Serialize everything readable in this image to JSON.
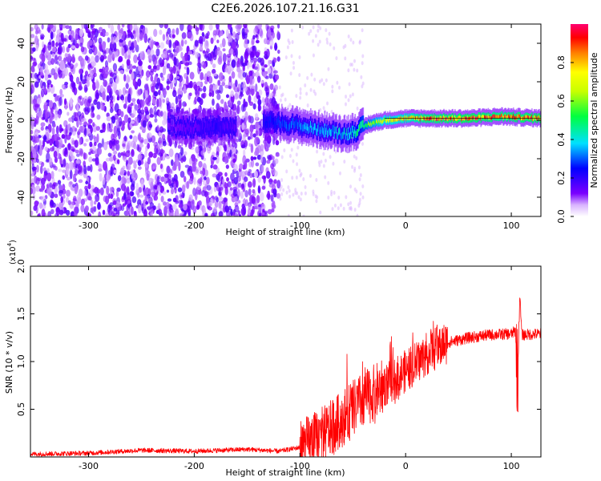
{
  "title": "C2E6.2026.107.21.16.G31",
  "chart_data": [
    {
      "type": "heatmap",
      "title": "C2E6.2026.107.21.16.G31",
      "xlabel": "Height of straight line (km)",
      "ylabel": "Frequency (Hz)",
      "xlim": [
        -355,
        128
      ],
      "ylim": [
        -50,
        50
      ],
      "xticks": [
        -300,
        -200,
        -100,
        0,
        100
      ],
      "xtick_labels": [
        "-300",
        "-200",
        "-100",
        "0",
        "100"
      ],
      "yticks": [
        -40,
        -20,
        0,
        20,
        40
      ],
      "ytick_labels": [
        "-40",
        "-20",
        "0",
        "20",
        "40"
      ],
      "colorbar": {
        "label": "Normalized spectral amplitude",
        "range": [
          0,
          1
        ],
        "ticks": [
          0.0,
          0.2,
          0.4,
          0.6,
          0.8
        ],
        "tick_labels": [
          "0.0",
          "0.2",
          "0.4",
          "0.6",
          "0.8"
        ],
        "colors": [
          "#ffffff",
          "#7a00ff",
          "#0000ff",
          "#00e0ff",
          "#00ff00",
          "#ffff00",
          "#ff8000",
          "#ff0000",
          "#ff00a0"
        ]
      },
      "ridge": {
        "description_points": [
          {
            "x": -225,
            "y": -3,
            "amp": 0.12
          },
          {
            "x": -200,
            "y": -4,
            "amp": 0.15
          },
          {
            "x": -180,
            "y": -3,
            "amp": 0.2
          },
          {
            "x": -160,
            "y": -4,
            "amp": 0.15
          },
          {
            "x": -130,
            "y": -1,
            "amp": 0.25
          },
          {
            "x": -110,
            "y": -2,
            "amp": 0.3
          },
          {
            "x": -90,
            "y": -4,
            "amp": 0.35
          },
          {
            "x": -70,
            "y": -6,
            "amp": 0.35
          },
          {
            "x": -55,
            "y": -7,
            "amp": 0.4
          },
          {
            "x": -45,
            "y": -5,
            "amp": 0.45
          },
          {
            "x": -35,
            "y": -2,
            "amp": 0.6
          },
          {
            "x": -20,
            "y": 0,
            "amp": 0.7
          },
          {
            "x": 0,
            "y": 1,
            "amp": 0.75
          },
          {
            "x": 20,
            "y": 1,
            "amp": 0.85
          },
          {
            "x": 60,
            "y": 1,
            "amp": 0.9
          },
          {
            "x": 90,
            "y": 2,
            "amp": 0.85
          },
          {
            "x": 128,
            "y": 1,
            "amp": 0.9
          }
        ]
      }
    },
    {
      "type": "line",
      "xlabel": "Height of straight line (km)",
      "ylabel": "SNR (10 * v/v)",
      "multiplier_label": "(x10",
      "multiplier_exponent": "4",
      "multiplier_close": ")",
      "xlim": [
        -355,
        128
      ],
      "ylim": [
        0,
        20000
      ],
      "xticks": [
        -300,
        -200,
        -100,
        0,
        100
      ],
      "xtick_labels": [
        "-300",
        "-200",
        "-100",
        "0",
        "100"
      ],
      "yticks": [
        5000,
        10000,
        15000,
        20000
      ],
      "ytick_labels": [
        "0.5",
        "1.0",
        "1.5",
        "2.0"
      ],
      "series": [
        {
          "name": "SNR",
          "color": "#ff0000",
          "x": [
            -355,
            -300,
            -250,
            -200,
            -150,
            -120,
            -100,
            -90,
            -80,
            -70,
            -60,
            -50,
            -40,
            -30,
            -20,
            -10,
            0,
            10,
            20,
            30,
            40,
            60,
            80,
            100,
            104,
            106,
            108,
            110,
            128
          ],
          "y": [
            300,
            400,
            700,
            600,
            800,
            600,
            1000,
            1500,
            2200,
            3000,
            4000,
            5000,
            6000,
            6700,
            7500,
            8200,
            9000,
            9800,
            10800,
            11500,
            12000,
            12500,
            12800,
            12900,
            13200,
            8000,
            17000,
            12800,
            12900
          ]
        }
      ]
    }
  ]
}
